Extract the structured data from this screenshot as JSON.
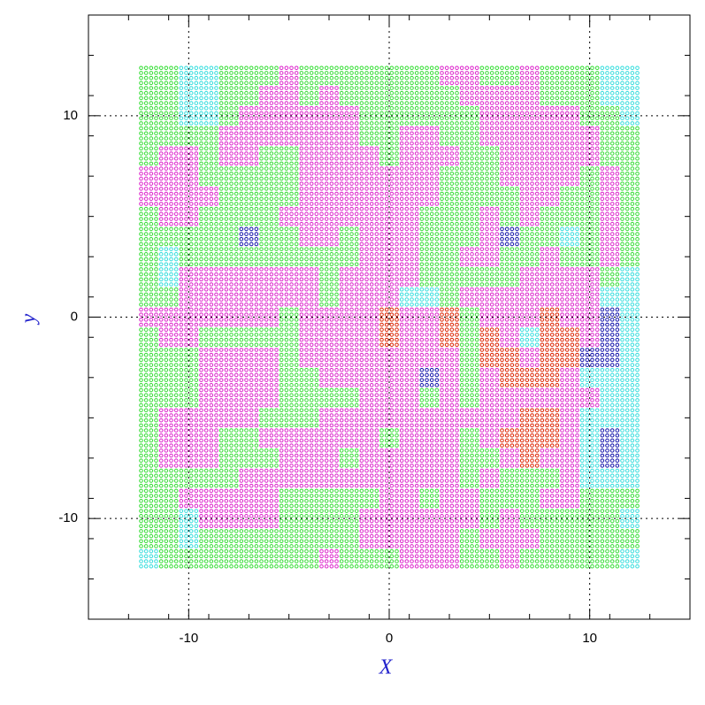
{
  "chart_data": {
    "type": "scatter",
    "x_label": "X",
    "y_label": "y",
    "xlim": [
      -15,
      15
    ],
    "ylim": [
      -15,
      15
    ],
    "xticks": [
      -10,
      0,
      10
    ],
    "yticks": [
      -10,
      0,
      10
    ],
    "grid": true,
    "palette": [
      "#33dd33",
      "#dd22cc",
      "#33dddd",
      "#dd2200",
      "#1111aa"
    ],
    "x": [
      -12,
      -11,
      -10,
      -9,
      -8,
      -7,
      -6,
      -5,
      -4,
      -3,
      -2,
      -1,
      0,
      1,
      2,
      3,
      4,
      5,
      6,
      7,
      8,
      9,
      10,
      11,
      12
    ],
    "y": [
      12,
      11,
      10,
      9,
      8,
      7,
      6,
      5,
      4,
      3,
      2,
      1,
      0,
      -1,
      -2,
      -3,
      -4,
      -5,
      -6,
      -7,
      -8,
      -9,
      -10,
      -11,
      -12
    ],
    "z": [
      [
        0,
        0,
        2,
        2,
        0,
        0,
        0,
        1,
        0,
        0,
        0,
        0,
        0,
        0,
        0,
        1,
        1,
        0,
        0,
        1,
        0,
        0,
        0,
        2,
        2
      ],
      [
        0,
        0,
        2,
        2,
        0,
        0,
        1,
        1,
        0,
        1,
        0,
        0,
        0,
        0,
        0,
        0,
        1,
        1,
        1,
        1,
        0,
        0,
        0,
        2,
        2
      ],
      [
        0,
        0,
        2,
        2,
        0,
        1,
        1,
        1,
        1,
        1,
        1,
        0,
        0,
        0,
        0,
        0,
        0,
        1,
        1,
        1,
        1,
        1,
        0,
        0,
        2
      ],
      [
        0,
        0,
        0,
        0,
        1,
        1,
        1,
        1,
        1,
        1,
        1,
        0,
        0,
        1,
        1,
        0,
        0,
        1,
        1,
        1,
        1,
        1,
        1,
        0,
        0
      ],
      [
        0,
        1,
        1,
        0,
        1,
        1,
        0,
        0,
        1,
        1,
        1,
        1,
        0,
        1,
        1,
        1,
        0,
        0,
        1,
        1,
        1,
        1,
        1,
        0,
        0
      ],
      [
        1,
        1,
        1,
        0,
        0,
        0,
        0,
        0,
        1,
        1,
        1,
        1,
        1,
        1,
        1,
        0,
        0,
        0,
        1,
        1,
        1,
        1,
        0,
        1,
        0
      ],
      [
        1,
        1,
        1,
        1,
        0,
        0,
        0,
        0,
        1,
        1,
        1,
        1,
        1,
        1,
        1,
        0,
        0,
        0,
        0,
        1,
        1,
        0,
        0,
        1,
        0
      ],
      [
        0,
        1,
        1,
        0,
        0,
        0,
        0,
        1,
        1,
        1,
        1,
        1,
        1,
        1,
        0,
        0,
        0,
        1,
        0,
        1,
        0,
        0,
        0,
        1,
        0
      ],
      [
        0,
        0,
        0,
        0,
        0,
        4,
        0,
        0,
        1,
        1,
        0,
        1,
        1,
        1,
        0,
        0,
        0,
        1,
        4,
        0,
        0,
        2,
        0,
        1,
        0
      ],
      [
        0,
        2,
        0,
        0,
        0,
        0,
        0,
        0,
        0,
        0,
        0,
        1,
        1,
        1,
        0,
        0,
        1,
        1,
        0,
        0,
        1,
        0,
        0,
        1,
        0
      ],
      [
        0,
        2,
        1,
        1,
        1,
        1,
        1,
        1,
        1,
        0,
        1,
        1,
        1,
        1,
        0,
        0,
        0,
        0,
        0,
        1,
        1,
        1,
        1,
        0,
        2
      ],
      [
        0,
        0,
        1,
        1,
        1,
        1,
        1,
        1,
        1,
        0,
        1,
        1,
        1,
        2,
        2,
        0,
        1,
        1,
        1,
        1,
        1,
        1,
        1,
        2,
        2
      ],
      [
        1,
        1,
        1,
        1,
        1,
        1,
        1,
        0,
        1,
        1,
        1,
        1,
        3,
        1,
        1,
        3,
        0,
        1,
        1,
        1,
        3,
        1,
        1,
        4,
        2
      ],
      [
        0,
        1,
        1,
        0,
        0,
        0,
        0,
        0,
        1,
        1,
        1,
        1,
        3,
        1,
        1,
        3,
        0,
        3,
        1,
        2,
        3,
        3,
        1,
        4,
        2
      ],
      [
        0,
        0,
        0,
        1,
        1,
        1,
        1,
        0,
        1,
        1,
        1,
        1,
        1,
        1,
        1,
        1,
        0,
        3,
        3,
        1,
        3,
        3,
        4,
        4,
        2
      ],
      [
        0,
        0,
        0,
        1,
        1,
        1,
        1,
        0,
        0,
        1,
        1,
        1,
        1,
        1,
        4,
        1,
        0,
        1,
        3,
        3,
        3,
        1,
        2,
        2,
        2
      ],
      [
        0,
        0,
        0,
        1,
        1,
        1,
        1,
        0,
        0,
        0,
        0,
        1,
        1,
        1,
        0,
        1,
        0,
        1,
        1,
        1,
        1,
        1,
        1,
        2,
        2
      ],
      [
        0,
        1,
        1,
        1,
        1,
        1,
        0,
        0,
        0,
        1,
        1,
        1,
        1,
        1,
        1,
        1,
        1,
        1,
        1,
        3,
        3,
        1,
        2,
        2,
        2
      ],
      [
        0,
        1,
        1,
        1,
        0,
        0,
        1,
        1,
        1,
        1,
        1,
        1,
        0,
        1,
        1,
        1,
        0,
        1,
        3,
        3,
        3,
        1,
        2,
        4,
        2
      ],
      [
        0,
        1,
        1,
        1,
        0,
        0,
        0,
        1,
        1,
        1,
        0,
        1,
        1,
        1,
        1,
        1,
        0,
        0,
        1,
        3,
        1,
        1,
        2,
        4,
        2
      ],
      [
        0,
        0,
        0,
        0,
        0,
        1,
        1,
        1,
        1,
        1,
        1,
        1,
        1,
        1,
        1,
        1,
        0,
        1,
        0,
        0,
        0,
        1,
        2,
        2,
        2
      ],
      [
        0,
        0,
        1,
        1,
        1,
        1,
        1,
        0,
        0,
        0,
        0,
        0,
        1,
        1,
        0,
        1,
        1,
        0,
        0,
        0,
        1,
        1,
        0,
        0,
        0
      ],
      [
        0,
        0,
        2,
        1,
        1,
        1,
        1,
        0,
        0,
        0,
        0,
        1,
        1,
        1,
        1,
        1,
        1,
        0,
        1,
        0,
        0,
        0,
        0,
        0,
        2
      ],
      [
        0,
        0,
        2,
        0,
        0,
        0,
        0,
        0,
        0,
        0,
        0,
        1,
        1,
        1,
        1,
        1,
        0,
        1,
        1,
        1,
        0,
        0,
        0,
        0,
        0
      ],
      [
        2,
        0,
        0,
        0,
        0,
        0,
        0,
        0,
        0,
        1,
        0,
        0,
        0,
        1,
        1,
        1,
        0,
        0,
        1,
        0,
        0,
        0,
        0,
        0,
        2
      ]
    ]
  }
}
